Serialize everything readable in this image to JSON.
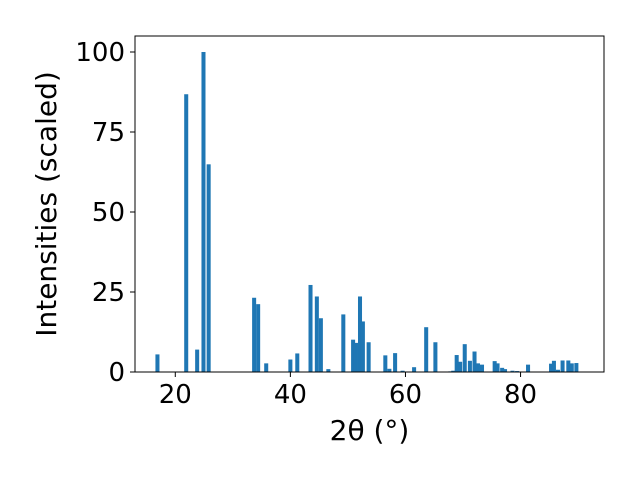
{
  "chart_data": {
    "type": "bar",
    "title": "",
    "xlabel": "2θ (°)",
    "ylabel": "Intensities (scaled)",
    "xlim": [
      13.0,
      94.5
    ],
    "ylim": [
      0,
      105
    ],
    "xticks": [
      20,
      40,
      60,
      80
    ],
    "yticks": [
      0,
      25,
      50,
      75,
      100
    ],
    "grid": false,
    "bar_color": "#1f77b4",
    "bar_width": 0.7,
    "x": [
      16.9,
      21.9,
      23.8,
      24.9,
      25.8,
      33.7,
      34.4,
      35.8,
      40.0,
      41.2,
      43.5,
      44.6,
      45.3,
      46.6,
      49.2,
      50.9,
      51.4,
      52.1,
      52.6,
      53.6,
      56.5,
      57.2,
      58.2,
      59.5,
      61.5,
      63.6,
      65.2,
      67.8,
      68.3,
      68.9,
      69.5,
      70.3,
      71.2,
      72.0,
      72.6,
      73.3,
      75.5,
      76.0,
      76.8,
      77.3,
      78.6,
      79.4,
      81.3,
      85.3,
      85.8,
      86.5,
      87.3,
      88.3,
      88.9,
      89.7
    ],
    "values": [
      5.5,
      86.8,
      7.0,
      100.0,
      64.9,
      23.2,
      21.2,
      2.7,
      3.9,
      5.8,
      27.2,
      23.6,
      16.8,
      0.9,
      18.0,
      10.1,
      9.1,
      23.6,
      15.8,
      9.3,
      5.2,
      1.0,
      5.9,
      0.4,
      1.5,
      14.0,
      9.3,
      0.2,
      0.4,
      5.3,
      3.2,
      8.7,
      3.5,
      6.4,
      2.7,
      2.3,
      3.4,
      2.7,
      1.3,
      0.9,
      0.4,
      0.3,
      2.3,
      2.6,
      3.5,
      0.7,
      3.6,
      3.6,
      2.7,
      2.8
    ]
  }
}
